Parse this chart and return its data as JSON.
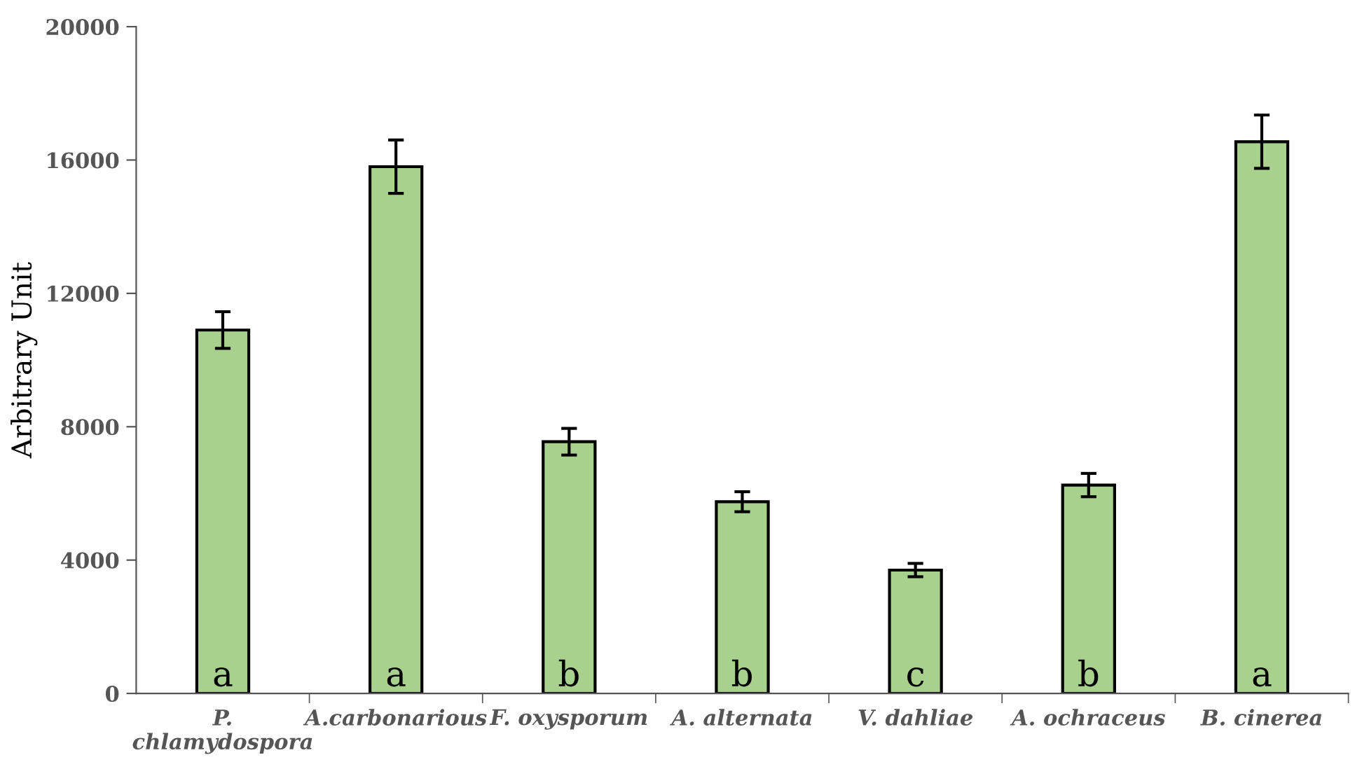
{
  "chart_data": {
    "type": "bar",
    "ylabel": "Arbitrary Unit",
    "categories": [
      "P. chlamydospora",
      "A.carbonarious",
      "F. oxysporum",
      "A. alternata",
      "V. dahliae",
      "A. ochraceus",
      "B. cinerea"
    ],
    "values": [
      10900,
      15800,
      7550,
      5750,
      3700,
      6250,
      16550
    ],
    "errors": [
      550,
      800,
      400,
      300,
      200,
      350,
      800
    ],
    "color": "#a9d18e",
    "ylim": [
      0,
      20000
    ],
    "yticks": [
      0,
      4000,
      8000,
      12000,
      16000,
      20000
    ],
    "grid": false,
    "legend": false,
    "annotations": [
      {
        "text": "a",
        "x": "P. chlamydospora",
        "y": 0
      },
      {
        "text": "a",
        "x": "A.carbonarious",
        "y": 0
      },
      {
        "text": "b",
        "x": "F. oxysporum",
        "y": 0
      },
      {
        "text": "b",
        "x": "A. alternata",
        "y": 0
      },
      {
        "text": "c",
        "x": "V. dahliae",
        "y": 0
      },
      {
        "text": "b",
        "x": "A. ochraceus",
        "y": 0
      },
      {
        "text": "a",
        "x": "B. cinerea",
        "y": 0
      }
    ]
  }
}
